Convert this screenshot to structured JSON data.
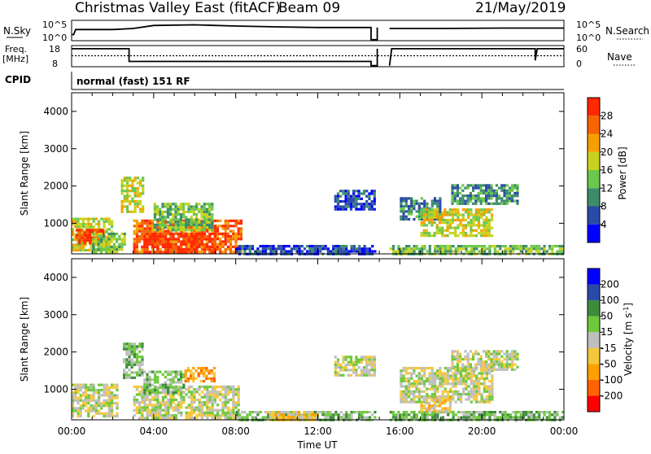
{
  "header": {
    "title": "Christmas Valley East (fitACF)",
    "beam": "Beam 09",
    "date": "21/May/2019"
  },
  "noise_panel": {
    "left_label": "N.Sky",
    "left_top": "10^5",
    "left_bottom": "10^0",
    "right_label": "N.Search",
    "right_top": "10^5",
    "right_bottom": "10^0"
  },
  "freq_panel": {
    "left_label_1": "Freq.",
    "left_label_2": "[MHz]",
    "left_top": "18",
    "left_bottom": "8",
    "right_label": "Nave",
    "right_top": "60",
    "right_bottom": "0"
  },
  "cpid": {
    "label": "CPID",
    "value": "normal (fast) 151 RF"
  },
  "colors": {
    "power": [
      "#0000ff",
      "#2a4aa8",
      "#3c8c6a",
      "#6ac84a",
      "#c8d21e",
      "#f5a000",
      "#f56400",
      "#ff2800"
    ],
    "velocity": [
      "#ff0000",
      "#ff6400",
      "#ffa000",
      "#f5c83c",
      "#bebebe",
      "#6ec83c",
      "#3c8c3c",
      "#2a4aa8",
      "#0000ff"
    ]
  },
  "chart_data": [
    {
      "type": "heatmap",
      "name": "power",
      "ylabel": "Slant Range [km]",
      "ylim": [
        180,
        4500
      ],
      "yticks": [
        "1000",
        "2000",
        "3000",
        "4000"
      ],
      "ytick_values": [
        1000,
        2000,
        3000,
        4000
      ],
      "xlim": [
        0,
        24
      ],
      "colorbar_label": "Power [dB]",
      "colorbar_ticks": [
        "4",
        "8",
        "12",
        "16",
        "20",
        "24",
        "28"
      ],
      "colorbar_range": [
        0,
        31
      ],
      "regions": [
        {
          "t0": 0.0,
          "t1": 2.0,
          "r0": 260,
          "r1": 1150,
          "level": 4
        },
        {
          "t0": 0.2,
          "t1": 1.5,
          "r0": 450,
          "r1": 850,
          "level": 7
        },
        {
          "t0": 1.0,
          "t1": 2.6,
          "r0": 250,
          "r1": 750,
          "level": 3
        },
        {
          "t0": 2.4,
          "t1": 3.5,
          "r0": 1300,
          "r1": 2250,
          "level": 4
        },
        {
          "t0": 3.0,
          "t1": 8.3,
          "r0": 230,
          "r1": 1100,
          "level": 6
        },
        {
          "t0": 3.5,
          "t1": 7.0,
          "r0": 240,
          "r1": 750,
          "level": 7
        },
        {
          "t0": 4.0,
          "t1": 6.8,
          "r0": 800,
          "r1": 1550,
          "level": 3
        },
        {
          "t0": 8.0,
          "t1": 14.8,
          "r0": 200,
          "r1": 420,
          "level": 1
        },
        {
          "t0": 15.5,
          "t1": 23.9,
          "r0": 200,
          "r1": 420,
          "level": 3
        },
        {
          "t0": 12.8,
          "t1": 14.8,
          "r0": 1400,
          "r1": 1900,
          "level": 1
        },
        {
          "t0": 16.0,
          "t1": 18.0,
          "r0": 1100,
          "r1": 1700,
          "level": 2
        },
        {
          "t0": 17.0,
          "t1": 20.5,
          "r0": 650,
          "r1": 1400,
          "level": 4
        },
        {
          "t0": 18.5,
          "t1": 21.7,
          "r0": 1500,
          "r1": 2050,
          "level": 2
        }
      ]
    },
    {
      "type": "heatmap",
      "name": "velocity",
      "ylabel": "Slant Range [km]",
      "ylim": [
        180,
        4500
      ],
      "yticks": [
        "1000",
        "2000",
        "3000",
        "4000"
      ],
      "ytick_values": [
        1000,
        2000,
        3000,
        4000
      ],
      "xlim": [
        0,
        24
      ],
      "xlabel": "Time UT",
      "xticks": [
        "00:00",
        "04:00",
        "08:00",
        "12:00",
        "16:00",
        "20:00",
        "00:00"
      ],
      "xtick_values": [
        0,
        4,
        8,
        12,
        16,
        20,
        24
      ],
      "colorbar_label": "Velocity [m s^-1]",
      "colorbar_ticks": [
        "-200",
        "-100",
        "-50",
        "-15",
        "15",
        "50",
        "100",
        "200"
      ],
      "regions": [
        {
          "t0": 0.0,
          "t1": 2.2,
          "r0": 260,
          "r1": 1150,
          "level": 4
        },
        {
          "t0": 2.5,
          "t1": 3.5,
          "r0": 1300,
          "r1": 2250,
          "level": 5
        },
        {
          "t0": 3.0,
          "t1": 8.2,
          "r0": 230,
          "r1": 1100,
          "level": 4
        },
        {
          "t0": 3.5,
          "t1": 5.5,
          "r0": 900,
          "r1": 1500,
          "level": 5
        },
        {
          "t0": 5.5,
          "t1": 7.0,
          "r0": 1200,
          "r1": 1600,
          "level": 2
        },
        {
          "t0": 8.0,
          "t1": 14.8,
          "r0": 200,
          "r1": 420,
          "level": 5
        },
        {
          "t0": 9.5,
          "t1": 12.0,
          "r0": 200,
          "r1": 420,
          "level": 3
        },
        {
          "t0": 15.5,
          "t1": 23.9,
          "r0": 200,
          "r1": 420,
          "level": 5
        },
        {
          "t0": 12.8,
          "t1": 14.8,
          "r0": 1400,
          "r1": 1900,
          "level": 4
        },
        {
          "t0": 16.0,
          "t1": 20.5,
          "r0": 650,
          "r1": 1600,
          "level": 4
        },
        {
          "t0": 17.0,
          "t1": 18.5,
          "r0": 450,
          "r1": 800,
          "level": 3
        },
        {
          "t0": 18.5,
          "t1": 21.7,
          "r0": 1500,
          "r1": 2050,
          "level": 4
        }
      ]
    }
  ],
  "noise_series": [
    {
      "t": 0.0,
      "v": 0.3
    },
    {
      "t": 0.1,
      "v": 0.3
    },
    {
      "t": 0.2,
      "v": 0.55
    },
    {
      "t": 2.0,
      "v": 0.55
    },
    {
      "t": 3.0,
      "v": 0.6
    },
    {
      "t": 4.0,
      "v": 0.75
    },
    {
      "t": 6.0,
      "v": 0.78
    },
    {
      "t": 8.0,
      "v": 0.72
    },
    {
      "t": 10.0,
      "v": 0.68
    },
    {
      "t": 12.0,
      "v": 0.65
    },
    {
      "t": 14.0,
      "v": 0.65
    },
    {
      "t": 14.6,
      "v": 0.65
    },
    {
      "t": 14.6,
      "v": 0.05
    },
    {
      "t": 14.9,
      "v": 0.05
    },
    {
      "t": 14.9,
      "v": 0.65
    }
  ],
  "noise_series_2": [
    {
      "t": 15.5,
      "v": 0.6
    },
    {
      "t": 18.0,
      "v": 0.6
    },
    {
      "t": 21.0,
      "v": 0.62
    },
    {
      "t": 24.0,
      "v": 0.62
    }
  ],
  "freq_series": [
    {
      "t": 0.0,
      "v": 0.85
    },
    {
      "t": 2.8,
      "v": 0.85
    },
    {
      "t": 2.8,
      "v": 0.25
    },
    {
      "t": 14.6,
      "v": 0.25
    },
    {
      "t": 14.6,
      "v": 0.05
    },
    {
      "t": 14.9,
      "v": 0.05
    },
    {
      "t": 14.9,
      "v": 0.85
    }
  ],
  "freq_series_2": [
    {
      "t": 15.5,
      "v": 0.05
    },
    {
      "t": 15.6,
      "v": 0.85
    },
    {
      "t": 22.6,
      "v": 0.85
    },
    {
      "t": 22.6,
      "v": 0.3
    },
    {
      "t": 22.7,
      "v": 0.85
    },
    {
      "t": 24.0,
      "v": 0.85
    }
  ],
  "nave_level": 0.52
}
